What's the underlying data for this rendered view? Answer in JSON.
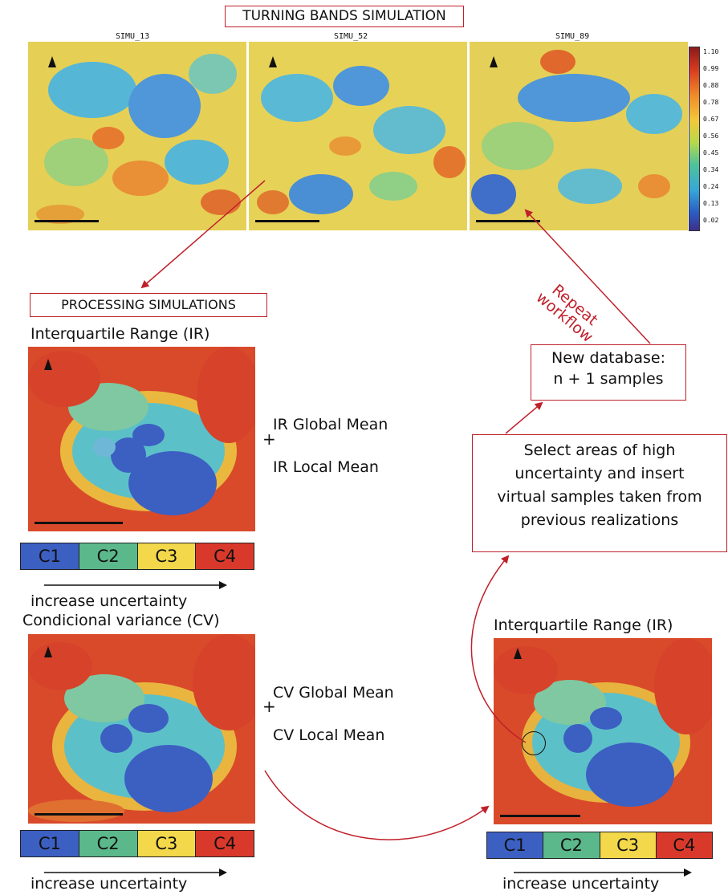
{
  "title": "TURNING BANDS SIMULATION",
  "simulations": [
    "SIMU_13",
    "SIMU_52",
    "SIMU_89"
  ],
  "legend_ticks": [
    "1.10",
    "0.99",
    "0.88",
    "0.78",
    "0.67",
    "0.56",
    "0.45",
    "0.34",
    "0.24",
    "0.13",
    "0.02"
  ],
  "processing_title": "PROCESSING SIMULATIONS",
  "ir_title": "Interquartile Range (IR)",
  "ir_global": "IR Global Mean",
  "ir_local": "IR Local Mean",
  "plus": "+",
  "cv_title": "Condicional variance (CV)",
  "cv_global": "CV Global Mean",
  "cv_local": "CV Local Mean",
  "classes": [
    "C1",
    "C2",
    "C3",
    "C4"
  ],
  "class_colors": [
    "#3c5fc2",
    "#5bb88a",
    "#f2d84a",
    "#d9392b"
  ],
  "increase": "increase uncertainty",
  "repeat_line1": "Repeat",
  "repeat_line2": "workflow",
  "new_db_line1": "New database:",
  "new_db_line2": "n + 1 samples",
  "select_line1": "Select areas of high",
  "select_line2": "uncertainty and insert",
  "select_line3": "virtual samples taken from",
  "select_line4": "previous realizations",
  "ir2_title": "Interquartile Range (IR)",
  "arrow_color": "#c0202a"
}
